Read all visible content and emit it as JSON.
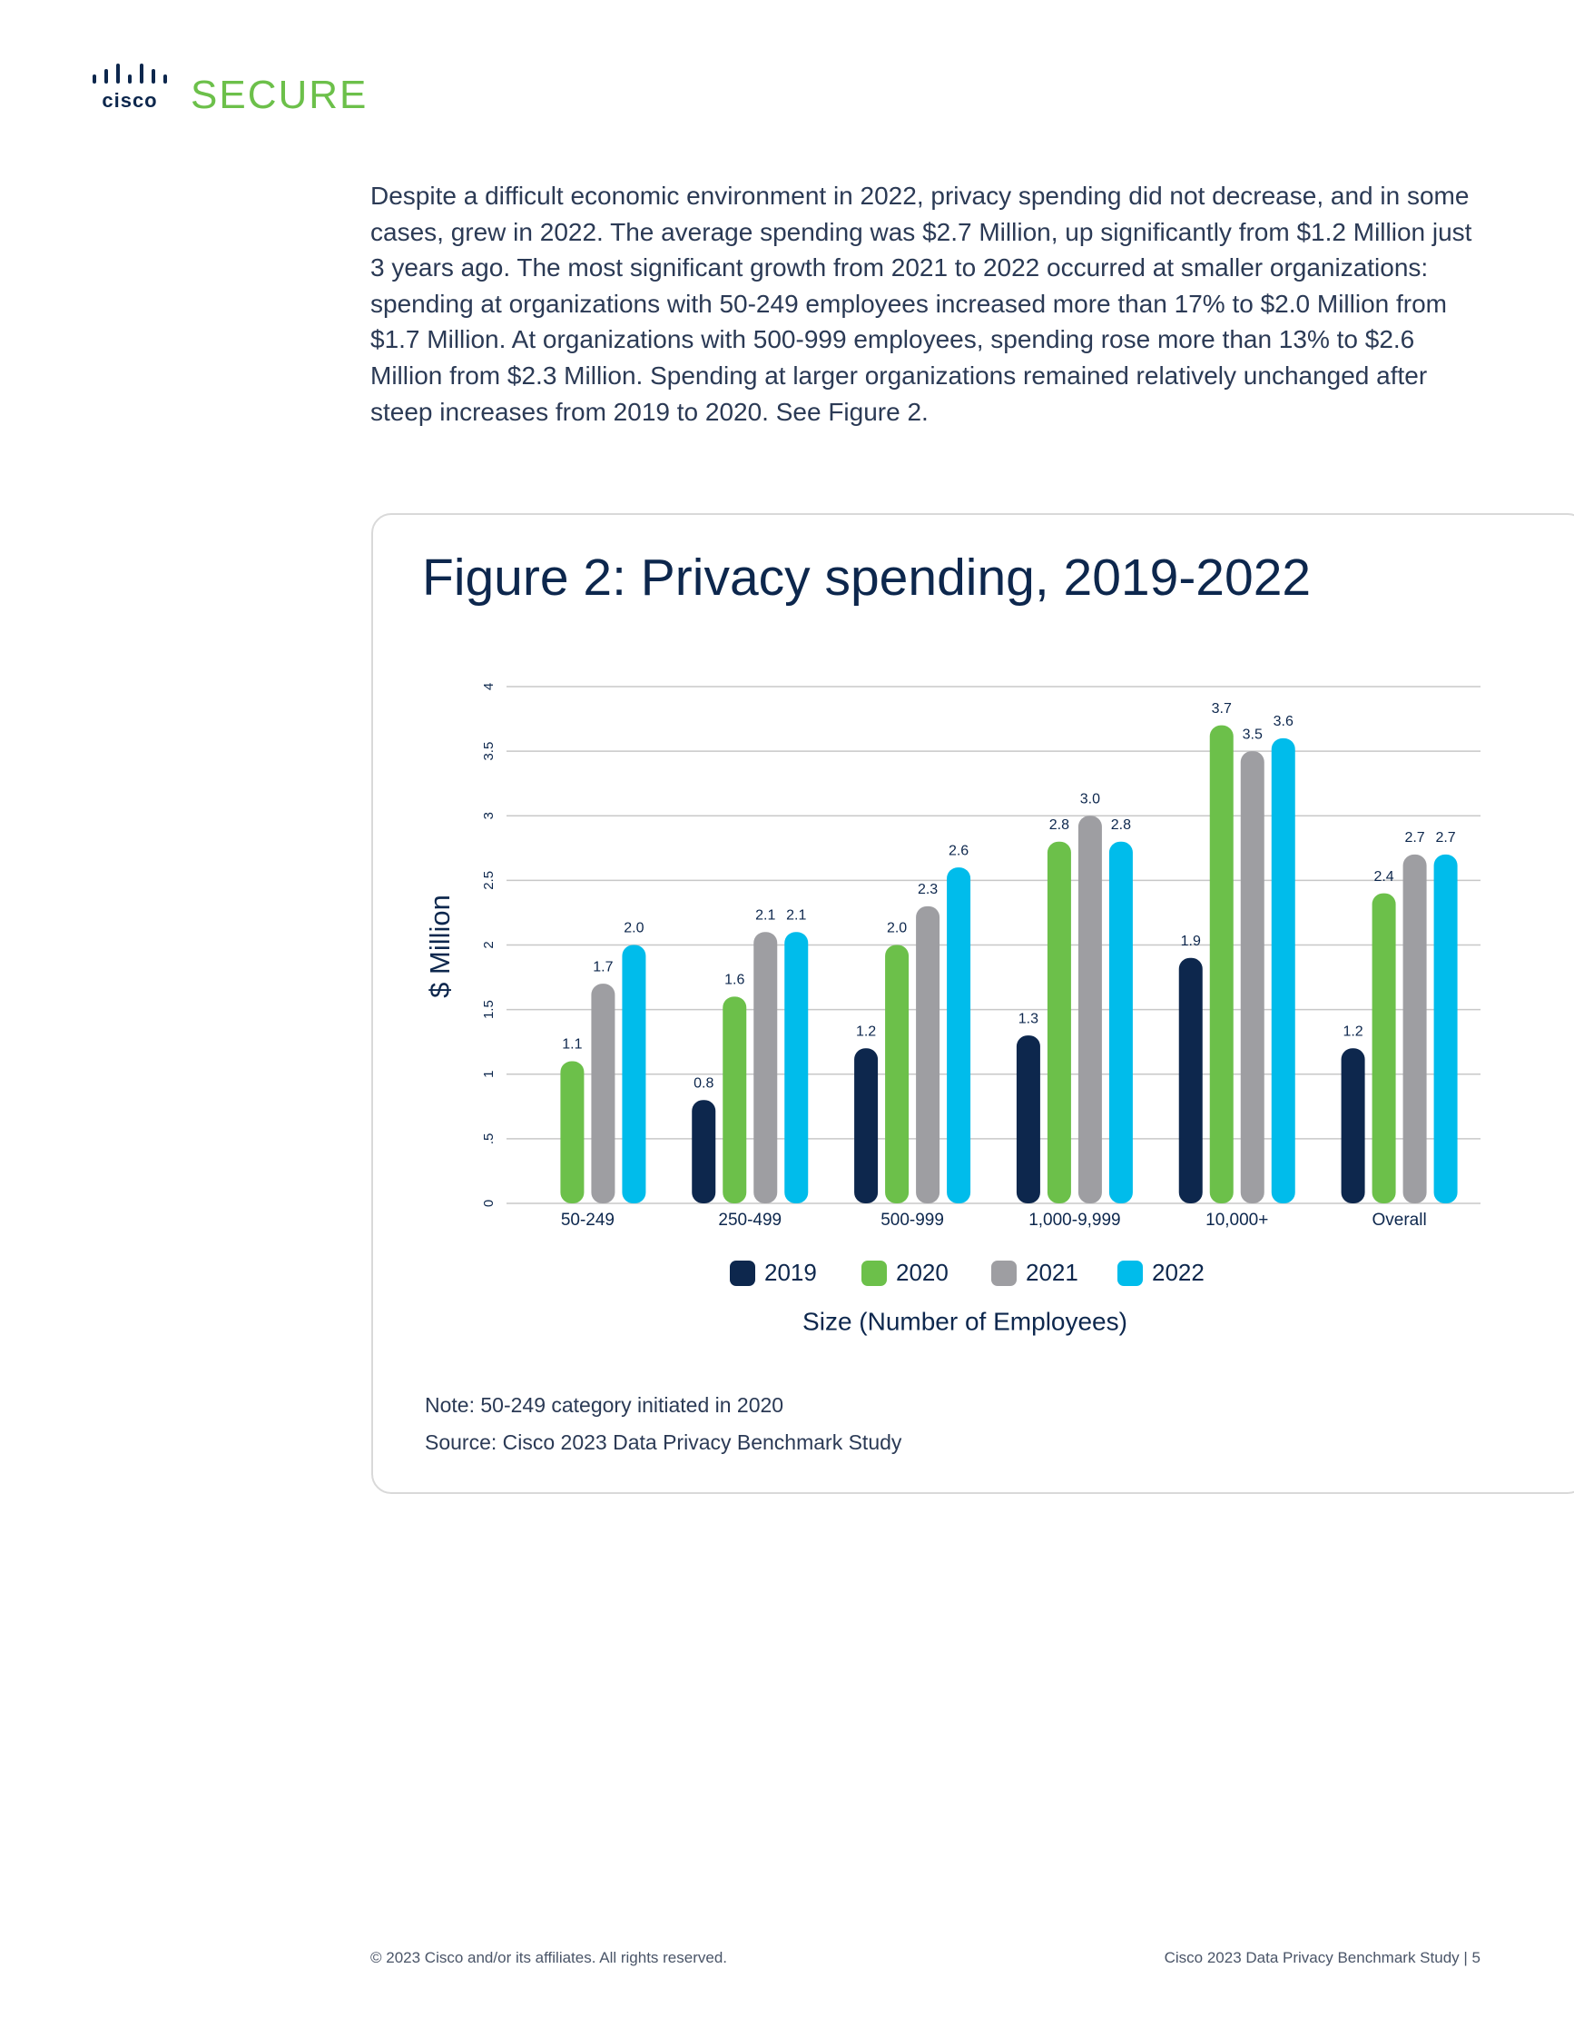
{
  "logo": {
    "brand": "cisco",
    "product": "SECURE"
  },
  "body_text": "Despite a difficult economic environment in 2022, privacy spending did not decrease, and in some cases, grew in 2022. The average spending was $2.7 Million, up significantly from $1.2 Million just 3 years ago. The most significant growth from 2021 to 2022 occurred at smaller organizations: spending at organizations with 50-249 employees increased more than 17% to $2.0 Million from $1.7 Million. At organizations with 500-999 employees, spending rose more than 13% to $2.6 Million from $2.3 Million. Spending at larger organizations remained relatively unchanged after steep increases from 2019 to 2020. See Figure 2.",
  "chart_data": {
    "type": "bar",
    "title": "Figure 2: Privacy spending, 2019-2022",
    "x_label": "Size (Number of Employees)",
    "y_label": "$ Million",
    "categories": [
      "50-249",
      "250-499",
      "500-999",
      "1,000-9,999",
      "10,000+",
      "Overall"
    ],
    "series": [
      {
        "name": "2019",
        "color": "#0d274d",
        "values": [
          null,
          0.8,
          1.2,
          1.3,
          1.9,
          1.2
        ],
        "value_labels": [
          null,
          "0.8",
          "1.2",
          "1.3",
          "1.9",
          "1.2"
        ]
      },
      {
        "name": "2020",
        "color": "#6cc04a",
        "values": [
          1.1,
          1.6,
          2.0,
          2.8,
          3.7,
          2.4
        ],
        "value_labels": [
          "1.1",
          "1.6",
          "2.0",
          "2.8",
          "3.7",
          "2.4"
        ]
      },
      {
        "name": "2021",
        "color": "#9e9ea2",
        "values": [
          1.7,
          2.1,
          2.3,
          3.0,
          3.5,
          2.7
        ],
        "value_labels": [
          "1.7",
          "2.1",
          "2.3",
          "3.0",
          "3.5",
          "2.7"
        ]
      },
      {
        "name": "2022",
        "color": "#00bceb",
        "values": [
          2.0,
          2.1,
          2.6,
          2.8,
          3.6,
          2.7
        ],
        "value_labels": [
          "2.0",
          "2.1",
          "2.6",
          "2.8",
          "3.6",
          "2.7"
        ]
      }
    ],
    "ylim": [
      0,
      4
    ],
    "yticks": [
      0,
      {
        "value": 0.5,
        "label": ".5"
      },
      1,
      1.5,
      2,
      2.5,
      3,
      3.5,
      4
    ],
    "grid": true,
    "legend": "bottom"
  },
  "notes": {
    "note": "Note: 50-249 category initiated in 2020",
    "source": "Source: Cisco 2023 Data Privacy Benchmark Study"
  },
  "footer": {
    "copyright": "© 2023 Cisco and/or its affiliates. All rights reserved.",
    "study": "Cisco 2023 Data Privacy Benchmark Study",
    "page": "5"
  }
}
